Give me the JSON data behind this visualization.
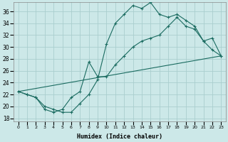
{
  "xlabel": "Humidex (Indice chaleur)",
  "bg_color": "#cce8e8",
  "grid_color": "#aacece",
  "line_color": "#1a6b60",
  "xlim": [
    -0.5,
    23.5
  ],
  "ylim": [
    17.5,
    37.5
  ],
  "yticks": [
    18,
    20,
    22,
    24,
    26,
    28,
    30,
    32,
    34,
    36
  ],
  "xticks": [
    0,
    1,
    2,
    3,
    4,
    5,
    6,
    7,
    8,
    9,
    10,
    11,
    12,
    13,
    14,
    15,
    16,
    17,
    18,
    19,
    20,
    21,
    22,
    23
  ],
  "series1_x": [
    0,
    1,
    2,
    3,
    4,
    5,
    6,
    7,
    8,
    9,
    10,
    11,
    12,
    13,
    14,
    15,
    16,
    17,
    18,
    19,
    20,
    21,
    22,
    23
  ],
  "series1_y": [
    22.5,
    22.0,
    21.5,
    20.0,
    19.5,
    19.0,
    19.0,
    20.5,
    22.0,
    24.5,
    30.5,
    34.0,
    35.5,
    37.0,
    36.5,
    37.5,
    35.5,
    35.0,
    35.5,
    34.5,
    33.5,
    31.0,
    29.5,
    28.5
  ],
  "series2_x": [
    0,
    1,
    2,
    3,
    4,
    5,
    6,
    7,
    8,
    9,
    10,
    11,
    12,
    13,
    14,
    15,
    16,
    17,
    18,
    19,
    20,
    21,
    22,
    23
  ],
  "series2_y": [
    22.5,
    22.0,
    21.5,
    19.5,
    19.0,
    19.5,
    21.5,
    22.5,
    27.5,
    25.0,
    25.0,
    27.0,
    28.5,
    30.0,
    31.0,
    31.5,
    32.0,
    33.5,
    35.0,
    33.5,
    33.0,
    31.0,
    31.5,
    28.5
  ],
  "series3_x": [
    0,
    23
  ],
  "series3_y": [
    22.5,
    28.5
  ]
}
